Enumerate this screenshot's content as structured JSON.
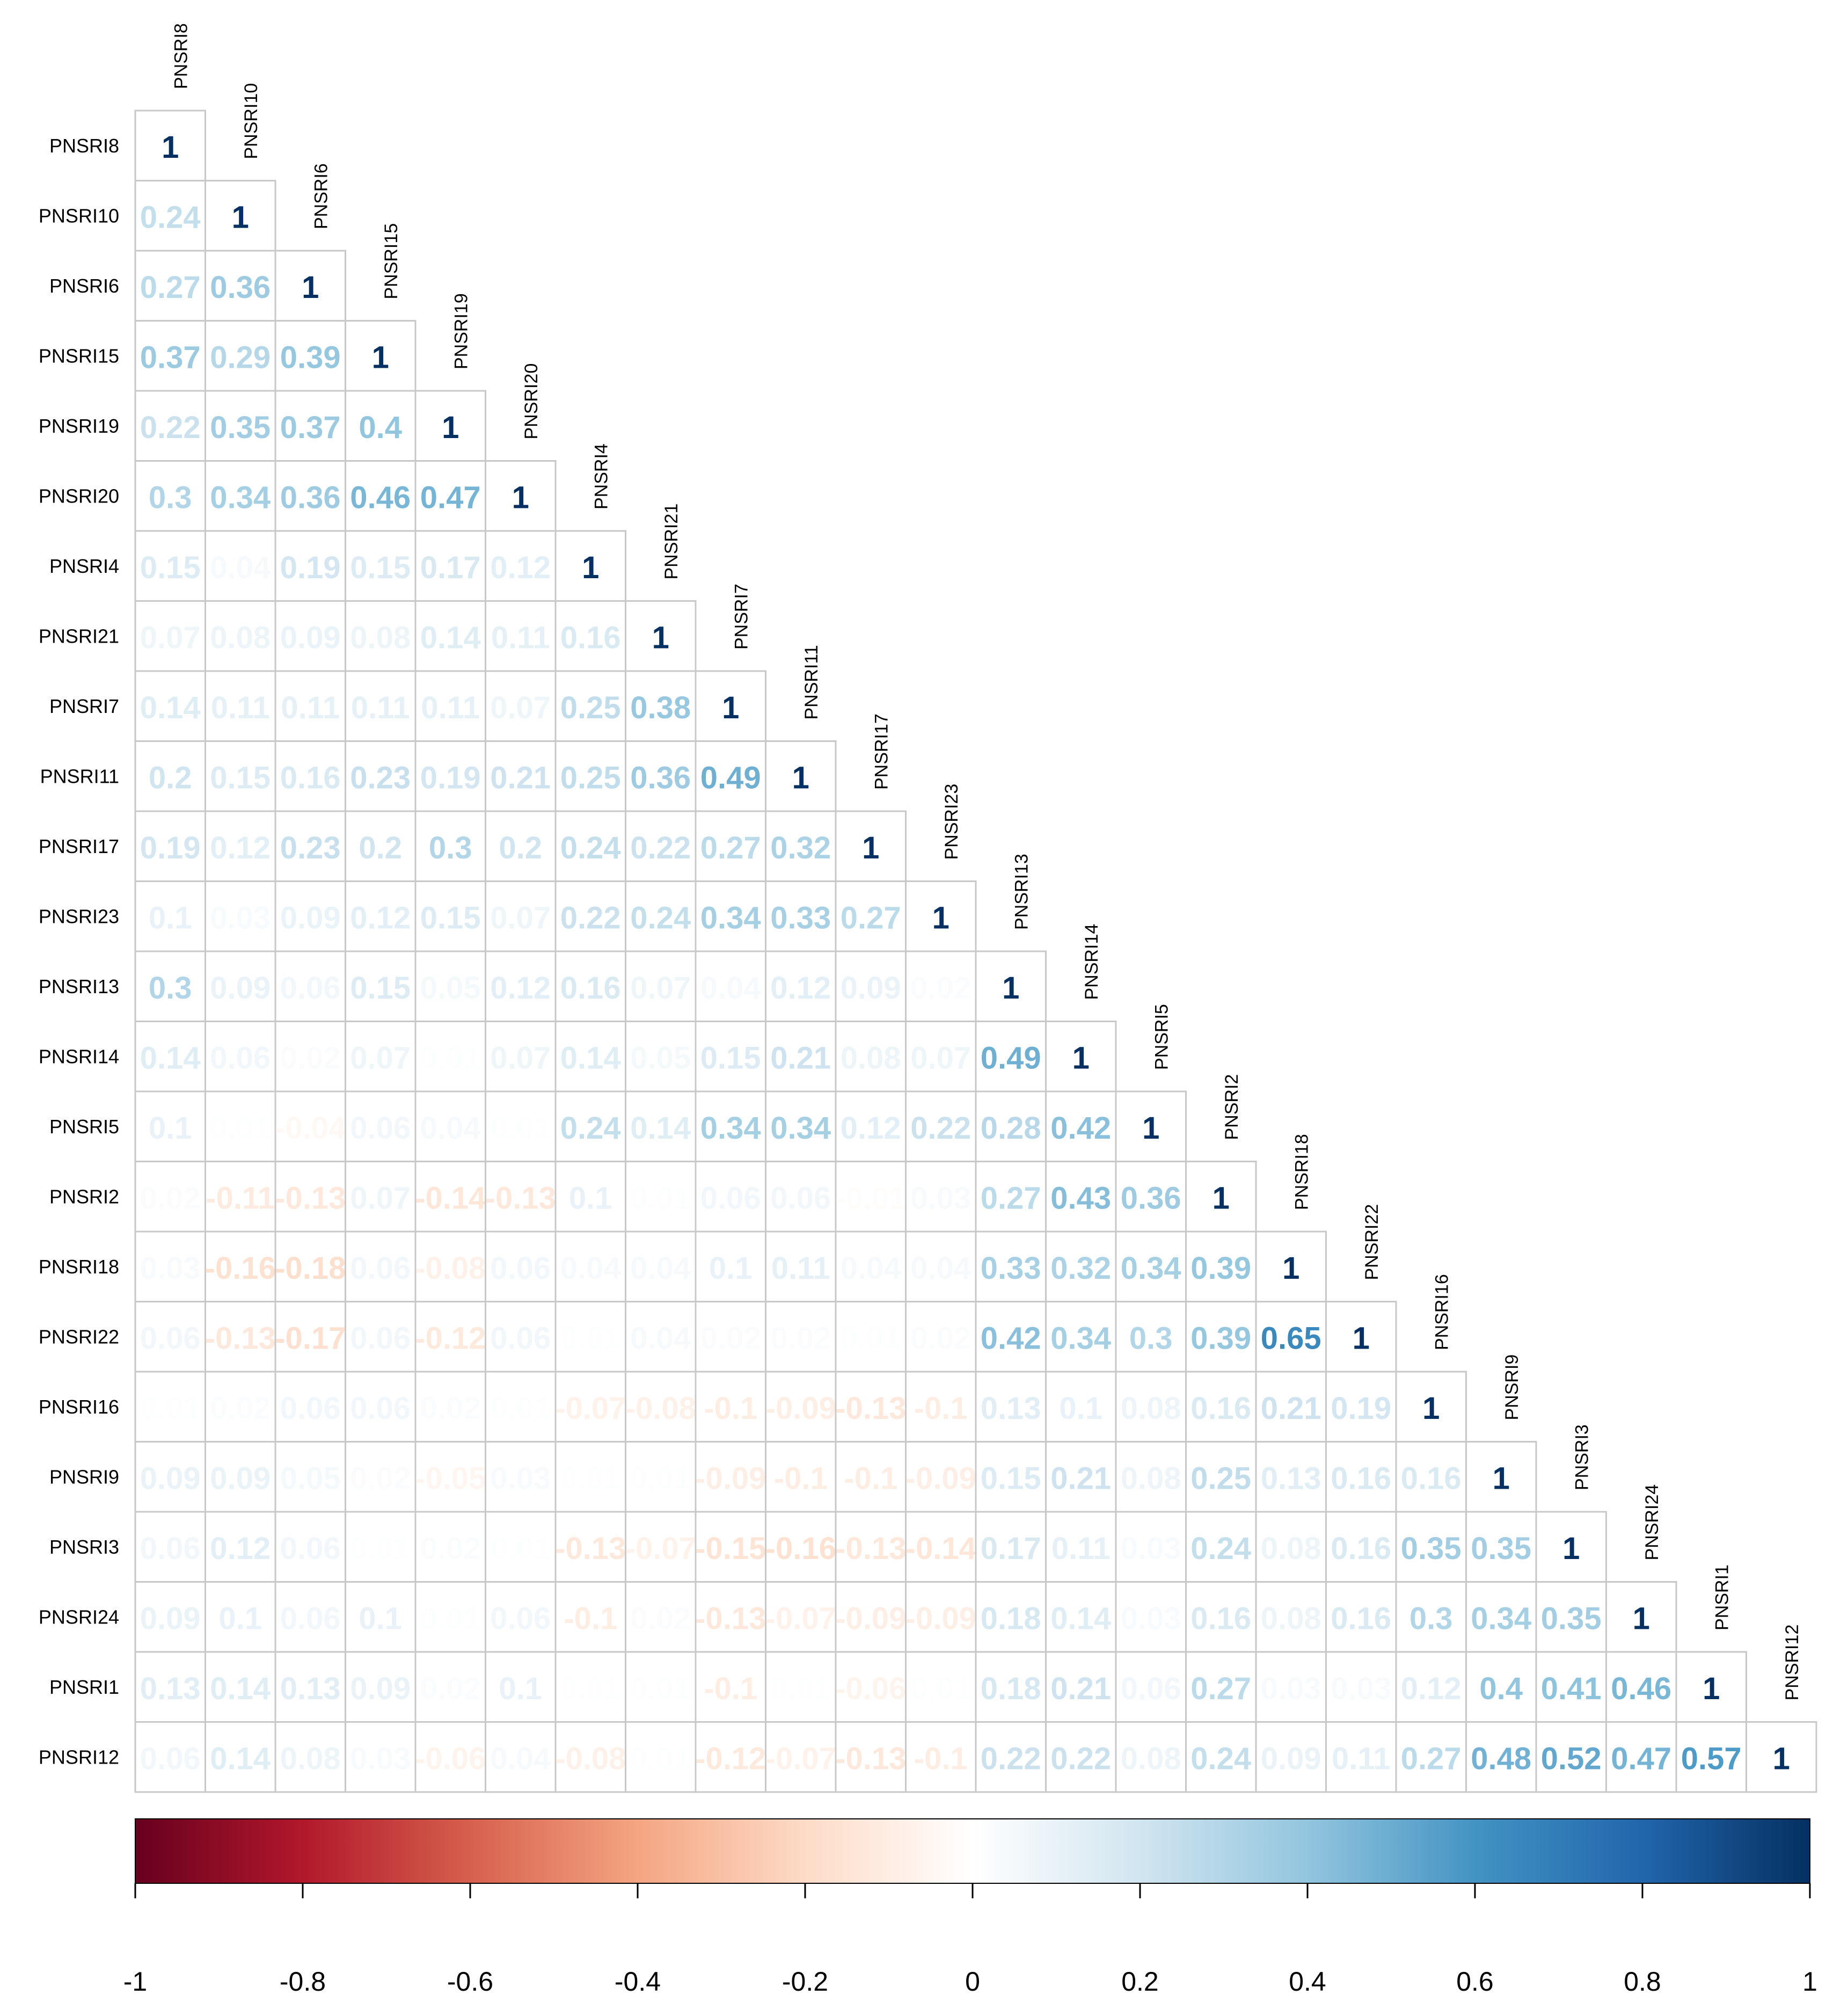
{
  "chart_data": {
    "type": "heatmap",
    "subtype": "correlation-lower-triangle",
    "title": "",
    "variables": [
      "PNSRI8",
      "PNSRI10",
      "PNSRI6",
      "PNSRI15",
      "PNSRI19",
      "PNSRI20",
      "PNSRI4",
      "PNSRI21",
      "PNSRI7",
      "PNSRI11",
      "PNSRI17",
      "PNSRI23",
      "PNSRI13",
      "PNSRI14",
      "PNSRI5",
      "PNSRI2",
      "PNSRI18",
      "PNSRI22",
      "PNSRI16",
      "PNSRI9",
      "PNSRI3",
      "PNSRI24",
      "PNSRI1",
      "PNSRI12"
    ],
    "column_labels": [
      "PNSRI8",
      "PNSRI10",
      "PNSRI6",
      "PNSRI15",
      "PNSRI19",
      "PNSRI20",
      "PNSRI4",
      "PNSRI21",
      "PNSRI7",
      "PNSRI11",
      "PNSRI17",
      "PNSRI23",
      "PNSRI13",
      "PNSRI14",
      "PNSRI5",
      "PNSRI2",
      "PNSRI18",
      "PNSRI22",
      "PNSRI16",
      "PNSRI9",
      "PNSRI3",
      "PNSRI24",
      "PNSRI1",
      "PNSRI12"
    ],
    "matrix": [
      [
        "1"
      ],
      [
        "0.24",
        "1"
      ],
      [
        "0.27",
        "0.36",
        "1"
      ],
      [
        "0.37",
        "0.29",
        "0.39",
        "1"
      ],
      [
        "0.22",
        "0.35",
        "0.37",
        "0.4",
        "1"
      ],
      [
        "0.3",
        "0.34",
        "0.36",
        "0.46",
        "0.47",
        "1"
      ],
      [
        "0.15",
        "0.04",
        "0.19",
        "0.15",
        "0.17",
        "0.12",
        "1"
      ],
      [
        "0.07",
        "0.08",
        "0.09",
        "0.08",
        "0.14",
        "0.11",
        "0.16",
        "1"
      ],
      [
        "0.14",
        "0.11",
        "0.11",
        "0.11",
        "0.11",
        "0.07",
        "0.25",
        "0.38",
        "1"
      ],
      [
        "0.2",
        "0.15",
        "0.16",
        "0.23",
        "0.19",
        "0.21",
        "0.25",
        "0.36",
        "0.49",
        "1"
      ],
      [
        "0.19",
        "0.12",
        "0.23",
        "0.2",
        "0.3",
        "0.2",
        "0.24",
        "0.22",
        "0.27",
        "0.32",
        "1"
      ],
      [
        "0.1",
        "0.03",
        "0.09",
        "0.12",
        "0.15",
        "0.07",
        "0.22",
        "0.24",
        "0.34",
        "0.33",
        "0.27",
        "1"
      ],
      [
        "0.3",
        "0.09",
        "0.06",
        "0.15",
        "0.05",
        "0.12",
        "0.16",
        "0.07",
        "0.04",
        "0.12",
        "0.09",
        "0.02",
        "1"
      ],
      [
        "0.14",
        "0.06",
        "0.02",
        "0.07",
        "0.01",
        "0.07",
        "0.14",
        "0.05",
        "0.15",
        "0.21",
        "0.08",
        "0.07",
        "0.49",
        "1"
      ],
      [
        "0.1",
        "0.01",
        "-0.04",
        "0.06",
        "0.04",
        "0.01",
        "0.24",
        "0.14",
        "0.34",
        "0.34",
        "0.12",
        "0.22",
        "0.28",
        "0.42",
        "1"
      ],
      [
        "0.02",
        "-0.11",
        "-0.13",
        "0.07",
        "-0.14",
        "-0.13",
        "0.1",
        "0.01",
        "0.06",
        "0.06",
        "-0.01",
        "0.03",
        "0.27",
        "0.43",
        "0.36",
        "1"
      ],
      [
        "0.03",
        "-0.16",
        "-0.18",
        "0.06",
        "-0.08",
        "0.06",
        "0.04",
        "0.04",
        "0.1",
        "0.11",
        "0.04",
        "0.04",
        "0.33",
        "0.32",
        "0.34",
        "0.39",
        "1"
      ],
      [
        "0.06",
        "-0.13",
        "-0.17",
        "0.06",
        "-0.12",
        "0.06",
        "0.01",
        "0.04",
        "0.02",
        "0.02",
        "0.01",
        "0.02",
        "0.42",
        "0.34",
        "0.3",
        "0.39",
        "0.65",
        "1"
      ],
      [
        "0.01",
        "0.02",
        "0.06",
        "0.06",
        "0.02",
        "0.01",
        "-0.07",
        "-0.08",
        "-0.1",
        "-0.09",
        "-0.13",
        "-0.1",
        "0.13",
        "0.1",
        "0.08",
        "0.16",
        "0.21",
        "0.19",
        "1"
      ],
      [
        "0.09",
        "0.09",
        "0.05",
        "0.02",
        "-0.05",
        "0.03",
        "0.01",
        "0.01",
        "-0.09",
        "-0.1",
        "-0.1",
        "-0.09",
        "0.15",
        "0.21",
        "0.08",
        "0.25",
        "0.13",
        "0.16",
        "0.16",
        "1"
      ],
      [
        "0.06",
        "0.12",
        "0.06",
        "0.01",
        "0.02",
        "0.01",
        "-0.13",
        "-0.07",
        "-0.15",
        "-0.16",
        "-0.13",
        "-0.14",
        "0.17",
        "0.11",
        "0.03",
        "0.24",
        "0.08",
        "0.16",
        "0.35",
        "0.35",
        "1"
      ],
      [
        "0.09",
        "0.1",
        "0.06",
        "0.1",
        "0.01",
        "0.06",
        "-0.1",
        "0.02",
        "-0.13",
        "-0.07",
        "-0.09",
        "-0.09",
        "0.18",
        "0.14",
        "0.03",
        "0.16",
        "0.08",
        "0.16",
        "0.3",
        "0.34",
        "0.35",
        "1"
      ],
      [
        "0.13",
        "0.14",
        "0.13",
        "0.09",
        "0.02",
        "0.1",
        "0.01",
        "0.01",
        "-0.1",
        "0.01",
        "-0.06",
        "0.01",
        "0.18",
        "0.21",
        "0.06",
        "0.27",
        "0.03",
        "0.03",
        "0.12",
        "0.4",
        "0.41",
        "0.46",
        "1"
      ],
      [
        "0.06",
        "0.14",
        "0.08",
        "0.03",
        "-0.06",
        "0.04",
        "-0.08",
        "0.01",
        "-0.12",
        "-0.07",
        "-0.13",
        "-0.1",
        "0.22",
        "0.22",
        "0.08",
        "0.24",
        "0.09",
        "0.11",
        "0.27",
        "0.48",
        "0.52",
        "0.47",
        "0.57",
        "1"
      ]
    ],
    "colorbar": {
      "range": [
        -1,
        1
      ],
      "tick_values": [
        -1,
        -0.8,
        -0.6,
        -0.4,
        -0.2,
        0,
        0.2,
        0.4,
        0.6,
        0.8,
        1
      ],
      "tick_labels": [
        "-1",
        "-0.8",
        "-0.6",
        "-0.4",
        "-0.2",
        "0",
        "0.2",
        "0.4",
        "0.6",
        "0.8",
        "1"
      ],
      "orientation": "horizontal",
      "placement": "bottom"
    },
    "colors": {
      "palette": [
        "#67001F",
        "#B2182B",
        "#D6604D",
        "#F4A582",
        "#FDDBC7",
        "#FFFFFF",
        "#D1E5F0",
        "#92C5DE",
        "#4393C3",
        "#2166AC",
        "#053061"
      ],
      "grid": "#c8c8c8",
      "diagonal_text": "#053061",
      "label_text": "#000000"
    }
  }
}
